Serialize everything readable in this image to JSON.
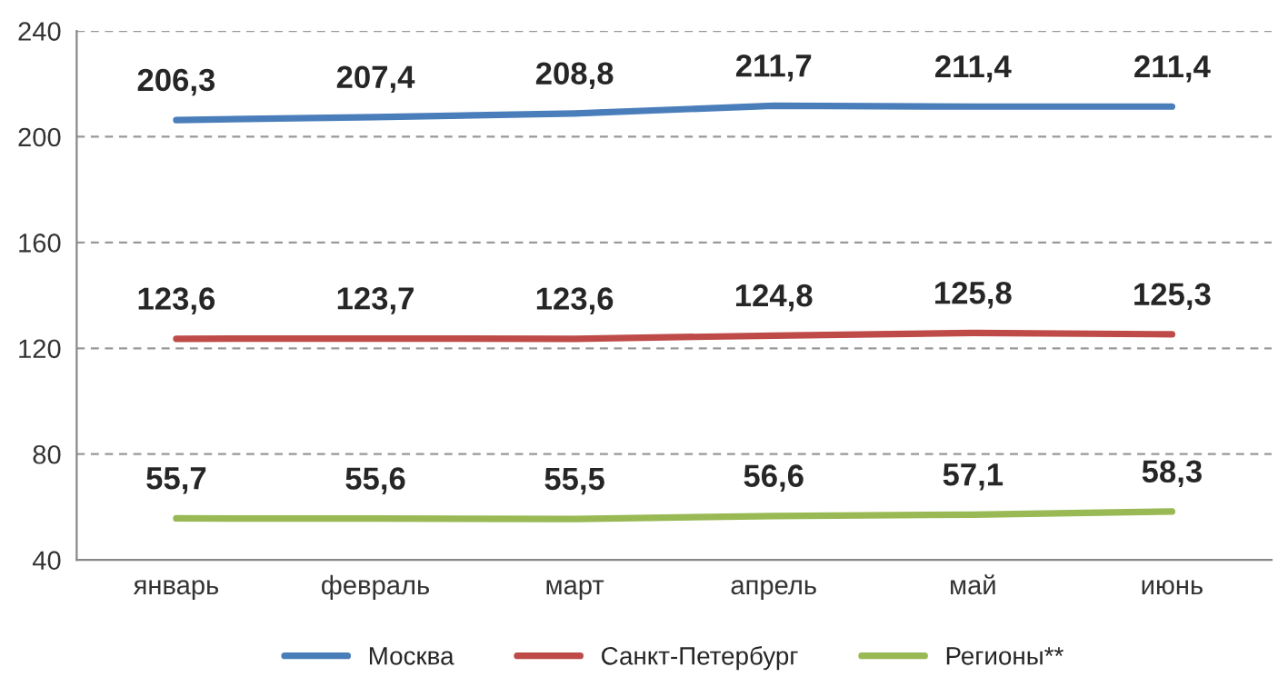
{
  "chart_data": {
    "type": "line",
    "categories": [
      "январь",
      "февраль",
      "март",
      "апрель",
      "май",
      "июнь"
    ],
    "series": [
      {
        "name": "Москва",
        "color": "#4a7ebb",
        "values": [
          206.3,
          207.4,
          208.8,
          211.7,
          211.4,
          211.4
        ],
        "value_labels": [
          "206,3",
          "207,4",
          "208,8",
          "211,7",
          "211,4",
          "211,4"
        ]
      },
      {
        "name": "Санкт-Петербург",
        "color": "#be4b48",
        "values": [
          123.6,
          123.7,
          123.6,
          124.8,
          125.8,
          125.3
        ],
        "value_labels": [
          "123,6",
          "123,7",
          "123,6",
          "124,8",
          "125,8",
          "125,3"
        ]
      },
      {
        "name": "Регионы**",
        "color": "#98b954",
        "values": [
          55.7,
          55.6,
          55.5,
          56.6,
          57.1,
          58.3
        ],
        "value_labels": [
          "55,7",
          "55,6",
          "55,5",
          "56,6",
          "57,1",
          "58,3"
        ]
      }
    ],
    "ylim": [
      40,
      240
    ],
    "yticks": [
      40,
      80,
      120,
      160,
      200,
      240
    ],
    "grid": "y",
    "legend": "bottom",
    "marker": "none",
    "line_style": "solid"
  }
}
